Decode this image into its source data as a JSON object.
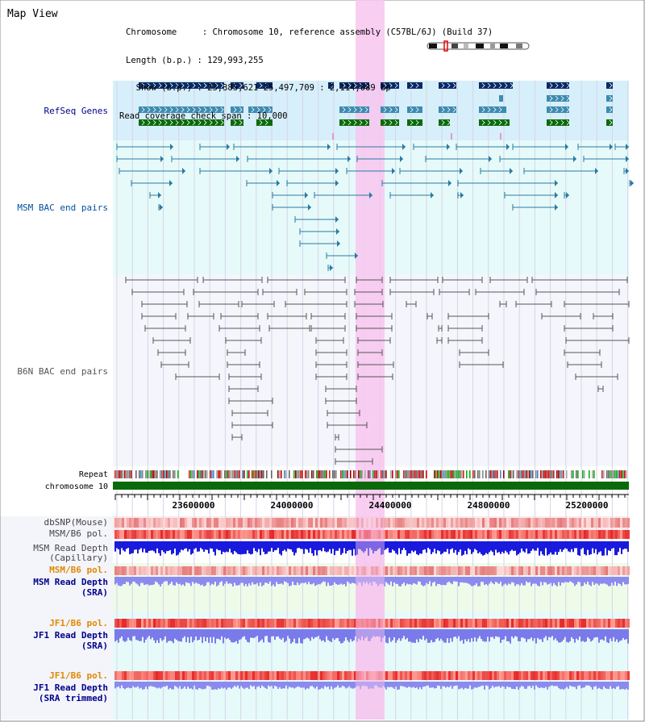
{
  "page": {
    "title": "Map View",
    "info": {
      "chromosome_label": "Chromosome     : Chromosome 10, reference assembly (C57BL/6J) (Build 37)",
      "length_label": "Length (b.p.) : 129,993,255",
      "show_label": "  Show (b.p.) : 23,383,621-25,497,709 : 2,114,089 bp",
      "span_label": "Read coverage check span : 10,000"
    }
  },
  "tracks": {
    "refseq_label": "RefSeq Genes",
    "msm_bac_label": "MSM BAC end pairs",
    "b6n_bac_label": "B6N BAC end pairs",
    "repeat_label": "Repeat",
    "chrom_label": "chromosome 10",
    "dbsnp_label": "dbSNP(Mouse)",
    "msm_b6_pol_label": "MSM/B6 pol.",
    "msm_depth_cap_label_1": "MSM Read Depth",
    "msm_depth_cap_label_2": "(Capillary)",
    "msm_b6_pol_sra_label": "MSM/B6 pol.",
    "msm_depth_sra_label_1": "MSM Read Depth",
    "msm_depth_sra_label_2": "(SRA)",
    "jf1_b6_pol_label": "JF1/B6 pol.",
    "jf1_depth_sra_label_1": "JF1 Read Depth",
    "jf1_depth_sra_label_2": "(SRA)",
    "jf1_b6_pol_trim_label": "JF1/B6 pol.",
    "jf1_depth_trim_label_1": "JF1 Read Depth",
    "jf1_depth_trim_label_2": "(SRA trimmed)"
  },
  "ruler": {
    "ticks": [
      "23600000",
      "24000000",
      "24400000",
      "24800000",
      "25200000"
    ]
  },
  "colors": {
    "highlight": "#f7c6ef",
    "refseq_bg": "#d7effa",
    "bac_bg": "#e6fafa",
    "b6n_bg": "#f4f6fb",
    "gene_navy": "#0a2a66",
    "gene_teal": "#3d8bb0",
    "gene_green": "#0b6b0b",
    "msm_line": "#2a7aa0",
    "b6n_line": "#555555",
    "chrom_green": "#0a6a0a",
    "label_navy": "#00008b",
    "label_blue": "#0050a0",
    "label_orange": "#e08a00"
  }
}
